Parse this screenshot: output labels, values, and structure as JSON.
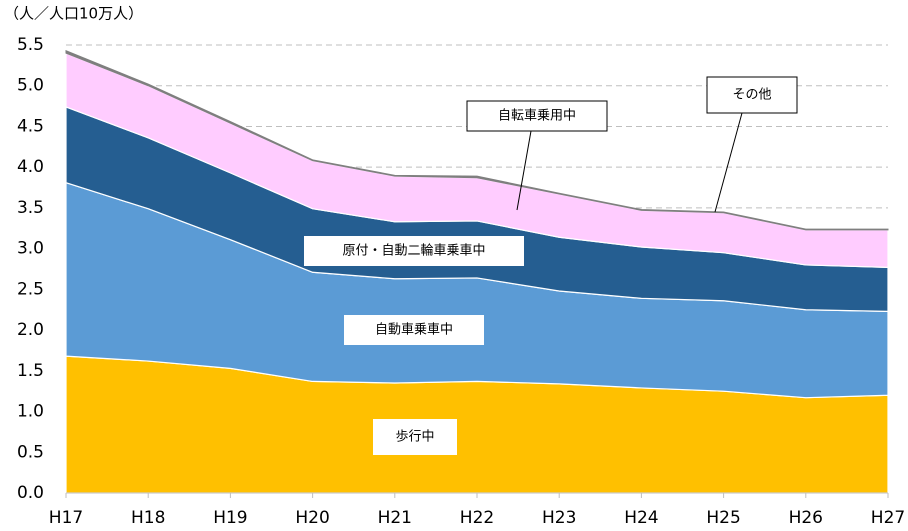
{
  "chart_data": {
    "type": "stacked_area",
    "y_axis_label": "（人／人口10万人）",
    "categories": [
      "H17",
      "H18",
      "H19",
      "H20",
      "H21",
      "H22",
      "H23",
      "H24",
      "H25",
      "H26",
      "H27"
    ],
    "series": [
      {
        "name": "歩行中",
        "color": "#ffc000",
        "values": [
          1.68,
          1.62,
          1.53,
          1.37,
          1.35,
          1.37,
          1.34,
          1.29,
          1.25,
          1.17,
          1.2
        ]
      },
      {
        "name": "自動車乗車中",
        "color": "#5b9bd5",
        "values": [
          2.13,
          1.87,
          1.58,
          1.34,
          1.28,
          1.27,
          1.14,
          1.1,
          1.11,
          1.08,
          1.03
        ]
      },
      {
        "name": "原付・自動二輪車乗車中",
        "color": "#255e91",
        "values": [
          0.93,
          0.87,
          0.82,
          0.78,
          0.7,
          0.7,
          0.66,
          0.63,
          0.59,
          0.55,
          0.54
        ]
      },
      {
        "name": "自転車乗用中",
        "color": "#ffccff",
        "values": [
          0.66,
          0.64,
          0.61,
          0.59,
          0.56,
          0.53,
          0.53,
          0.45,
          0.49,
          0.43,
          0.46
        ]
      },
      {
        "name": "その他",
        "color": "#7f7f7f",
        "values": [
          0.03,
          0.02,
          0.02,
          0.01,
          0.01,
          0.02,
          0.01,
          0.01,
          0.01,
          0.01,
          0.01
        ]
      }
    ],
    "ylim": [
      0,
      5.5
    ],
    "yticks": [
      {
        "value": 0,
        "label": "0.0"
      },
      0.5,
      {
        "value": 1,
        "label": "1.0"
      },
      1.5,
      {
        "value": 2,
        "label": "2.0"
      },
      2.5,
      {
        "value": 3,
        "label": "3.0"
      },
      3.5,
      {
        "value": 4,
        "label": "4.0"
      },
      4.5,
      {
        "value": 5,
        "label": "5.0"
      },
      5.5
    ],
    "grid": true
  }
}
